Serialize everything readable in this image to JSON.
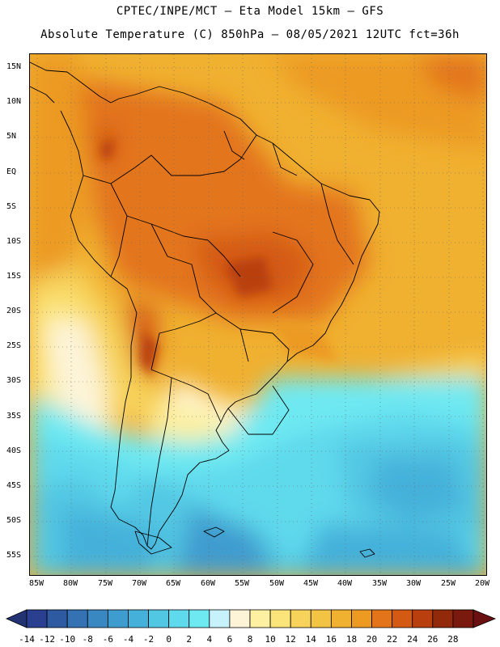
{
  "header": {
    "line1": "CPTEC/INPE/MCT –  Eta Model 15km – GFS",
    "line2": "Absolute Temperature (C) 850hPa – 08/05/2021 12UTC fct=36h"
  },
  "map": {
    "lat_labels": [
      "15N",
      "10N",
      "5N",
      "EQ",
      "5S",
      "10S",
      "15S",
      "20S",
      "25S",
      "30S",
      "35S",
      "40S",
      "45S",
      "50S",
      "55S"
    ],
    "lon_labels": [
      "85W",
      "80W",
      "75W",
      "70W",
      "65W",
      "60W",
      "55W",
      "50W",
      "45W",
      "40W",
      "35W",
      "30W",
      "25W",
      "20W"
    ],
    "grid": "dotted"
  },
  "colorbar": {
    "labels": [
      "-14",
      "-12",
      "-10",
      "-8",
      "-6",
      "-4",
      "-2",
      "0",
      "2",
      "4",
      "6",
      "8",
      "10",
      "12",
      "14",
      "16",
      "18",
      "20",
      "22",
      "24",
      "26",
      "28"
    ],
    "colors": [
      "#2a3f8f",
      "#2e5aa2",
      "#3472b4",
      "#3a88c2",
      "#3f9ccf",
      "#45b1da",
      "#52c7e3",
      "#5fd9ec",
      "#6ee9f2",
      "#c7f2fb",
      "#fdf4d8",
      "#fdf0a0",
      "#fbe47a",
      "#f7d35c",
      "#f3c444",
      "#f0b030",
      "#ec9a22",
      "#e3741a",
      "#d45a14",
      "#b9400e",
      "#93290b",
      "#7a1a0f"
    ],
    "under_color": "#233272",
    "over_color": "#6a1010"
  }
}
